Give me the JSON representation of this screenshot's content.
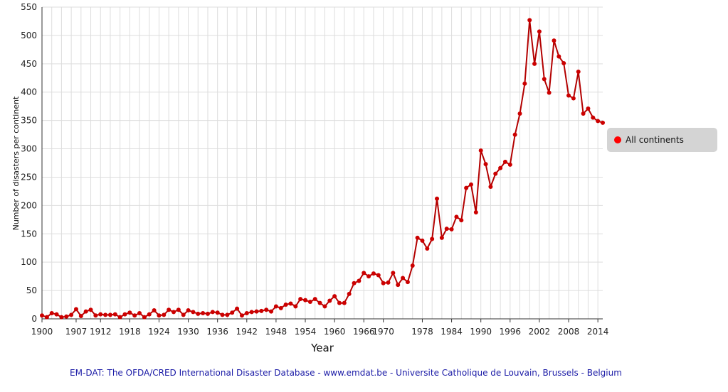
{
  "chart_data": {
    "type": "line",
    "title": "",
    "xlabel": "Year",
    "ylabel": "Number of disasters per continent",
    "xlim": [
      1900,
      2015
    ],
    "ylim": [
      0,
      550
    ],
    "y_ticks": [
      0,
      50,
      100,
      150,
      200,
      250,
      300,
      350,
      400,
      450,
      500,
      550
    ],
    "x_ticks": [
      1900,
      1907,
      1912,
      1918,
      1924,
      1930,
      1936,
      1942,
      1948,
      1954,
      1960,
      1966,
      1970,
      1978,
      1984,
      1990,
      1996,
      2002,
      2008,
      2014
    ],
    "grid": true,
    "legend_position": "right",
    "colors": {
      "series": "#b30000",
      "marker": "#cc0000",
      "legend_marker": "#ff0000",
      "grid": "#dddddd"
    },
    "series": [
      {
        "name": "All continents",
        "x": [
          1900,
          1901,
          1902,
          1903,
          1904,
          1905,
          1906,
          1907,
          1908,
          1909,
          1910,
          1911,
          1912,
          1913,
          1914,
          1915,
          1916,
          1917,
          1918,
          1919,
          1920,
          1921,
          1922,
          1923,
          1924,
          1925,
          1926,
          1927,
          1928,
          1929,
          1930,
          1931,
          1932,
          1933,
          1934,
          1935,
          1936,
          1937,
          1938,
          1939,
          1940,
          1941,
          1942,
          1943,
          1944,
          1945,
          1946,
          1947,
          1948,
          1949,
          1950,
          1951,
          1952,
          1953,
          1954,
          1955,
          1956,
          1957,
          1958,
          1959,
          1960,
          1961,
          1962,
          1963,
          1964,
          1965,
          1966,
          1967,
          1968,
          1969,
          1970,
          1971,
          1972,
          1973,
          1974,
          1975,
          1976,
          1977,
          1978,
          1979,
          1980,
          1981,
          1982,
          1983,
          1984,
          1985,
          1986,
          1987,
          1988,
          1989,
          1990,
          1991,
          1992,
          1993,
          1994,
          1995,
          1996,
          1997,
          1998,
          1999,
          2000,
          2001,
          2002,
          2003,
          2004,
          2005,
          2006,
          2007,
          2008,
          2009,
          2010,
          2011,
          2012,
          2013,
          2014,
          2015
        ],
        "values": [
          6,
          3,
          10,
          8,
          3,
          4,
          7,
          17,
          5,
          13,
          16,
          6,
          8,
          7,
          7,
          8,
          3,
          8,
          11,
          6,
          10,
          3,
          8,
          15,
          6,
          7,
          16,
          12,
          16,
          7,
          15,
          12,
          9,
          10,
          9,
          12,
          11,
          7,
          7,
          11,
          18,
          6,
          10,
          12,
          13,
          14,
          16,
          13,
          22,
          19,
          25,
          27,
          22,
          35,
          33,
          30,
          35,
          28,
          22,
          32,
          40,
          28,
          28,
          44,
          63,
          67,
          81,
          75,
          80,
          77,
          63,
          64,
          81,
          60,
          72,
          65,
          94,
          143,
          138,
          124,
          141,
          212,
          143,
          159,
          158,
          180,
          174,
          231,
          237,
          188,
          297,
          273,
          233,
          256,
          266,
          277,
          272,
          325,
          362,
          415,
          527,
          450,
          507,
          423,
          399,
          491,
          463,
          451,
          394,
          389,
          436,
          362,
          371,
          355,
          349,
          346
        ]
      }
    ]
  },
  "footer": {
    "credit": "EM-DAT: The OFDA/CRED International Disaster Database - www.emdat.be - Universite Catholique de Louvain, Brussels - Belgium"
  }
}
